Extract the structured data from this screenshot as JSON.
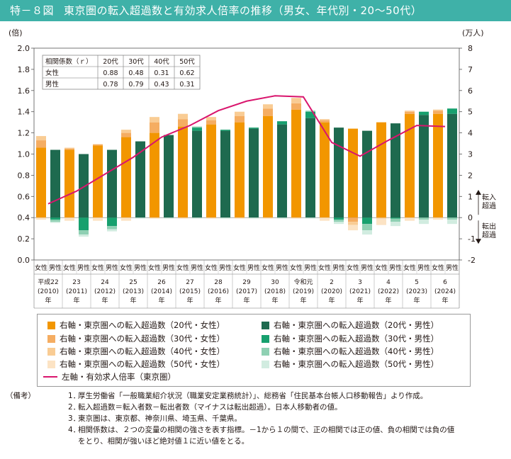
{
  "title": {
    "number": "特－８図",
    "text": "東京圏の転入超過数と有効求人倍率の推移（男女、年代別・20～50代）"
  },
  "chart_data": {
    "type": "bar",
    "left_axis": {
      "label": "(倍)",
      "min": 0.0,
      "max": 2.0,
      "ticks": [
        "0.0",
        "0.2",
        "0.4",
        "0.6",
        "0.8",
        "1.0",
        "1.2",
        "1.4",
        "1.6",
        "1.8",
        "2.0"
      ]
    },
    "right_axis": {
      "label": "(万人)",
      "min": -2,
      "max": 8,
      "ticks": [
        "-2",
        "-1",
        "0",
        "1",
        "2",
        "3",
        "4",
        "5",
        "6",
        "7",
        "8"
      ],
      "annotations": {
        "positive": [
          "転入",
          "超過"
        ],
        "negative": [
          "転出",
          "超過"
        ]
      }
    },
    "years": [
      {
        "era": "平成22",
        "western": "(2010)",
        "suffix": "年"
      },
      {
        "era": "23",
        "western": "(2011)",
        "suffix": "年"
      },
      {
        "era": "24",
        "western": "(2012)",
        "suffix": "年"
      },
      {
        "era": "25",
        "western": "(2013)",
        "suffix": "年"
      },
      {
        "era": "26",
        "western": "(2014)",
        "suffix": "年"
      },
      {
        "era": "27",
        "western": "(2015)",
        "suffix": "年"
      },
      {
        "era": "28",
        "western": "(2016)",
        "suffix": "年"
      },
      {
        "era": "29",
        "western": "(2017)",
        "suffix": "年"
      },
      {
        "era": "30",
        "western": "(2018)",
        "suffix": "年"
      },
      {
        "era": "令和元",
        "western": "(2019)",
        "suffix": "年"
      },
      {
        "era": "2",
        "western": "(2020)",
        "suffix": "年"
      },
      {
        "era": "3",
        "western": "(2021)",
        "suffix": "年"
      },
      {
        "era": "4",
        "western": "(2022)",
        "suffix": "年"
      },
      {
        "era": "5",
        "western": "(2023)",
        "suffix": "年"
      },
      {
        "era": "6",
        "western": "(2024)",
        "suffix": "年"
      }
    ],
    "sex_labels": {
      "female": "女性",
      "male": "男性"
    },
    "colors": {
      "female": [
        "#f29600",
        "#f5ad62",
        "#f9cc94",
        "#fce3c4"
      ],
      "male": [
        "#1e6a4f",
        "#17a06e",
        "#8fd0b3",
        "#d1ece0"
      ],
      "line": "#d9156d"
    },
    "female_series": [
      {
        "name": "右軸・東京圏への転入超過数（20代・女性）",
        "values": [
          3.3,
          3.2,
          3.4,
          3.8,
          4.0,
          4.3,
          4.4,
          4.5,
          4.8,
          5.1,
          4.5,
          4.2,
          4.5,
          4.9,
          4.9
        ]
      },
      {
        "name": "右軸・東京圏への転入超過数（30代・女性）",
        "values": [
          0.35,
          0.05,
          0.05,
          0.2,
          0.5,
          0.35,
          0.2,
          0.3,
          0.35,
          0.3,
          0.1,
          -0.2,
          0.0,
          0.1,
          0.15
        ]
      },
      {
        "name": "右軸・東京圏への転入超過数（40代・女性）",
        "values": [
          0.2,
          0.05,
          0.02,
          0.15,
          0.25,
          0.25,
          0.15,
          0.2,
          0.2,
          0.25,
          0.05,
          -0.15,
          -0.05,
          0.05,
          0.05
        ]
      },
      {
        "name": "右軸・東京圏への転入超過数（50代・女性）",
        "values": [
          -0.1,
          -0.15,
          -0.15,
          -0.15,
          -0.05,
          -0.05,
          -0.05,
          -0.05,
          -0.05,
          -0.05,
          -0.15,
          -0.25,
          -0.3,
          -0.15,
          -0.1
        ]
      }
    ],
    "male_series": [
      {
        "name": "右軸・東京圏への転入超過数（20代・男性）",
        "values": [
          3.2,
          3.0,
          3.2,
          3.6,
          3.9,
          4.1,
          4.1,
          4.2,
          4.4,
          4.7,
          4.25,
          4.1,
          4.45,
          4.85,
          4.9
        ]
      },
      {
        "name": "右軸・東京圏への転入超過数（30代・男性）",
        "values": [
          -0.1,
          -0.6,
          -0.4,
          0.0,
          0.0,
          0.15,
          0.05,
          0.05,
          0.15,
          0.3,
          -0.1,
          -0.3,
          -0.05,
          0.15,
          0.25
        ]
      },
      {
        "name": "右軸・東京圏への転入超過数（40代・男性）",
        "values": [
          -0.1,
          -0.2,
          -0.15,
          0.0,
          0.0,
          0.05,
          0.0,
          0.0,
          0.0,
          0.05,
          -0.1,
          -0.3,
          -0.15,
          -0.1,
          -0.1
        ]
      },
      {
        "name": "右軸・東京圏への転入超過数（50代・男性）",
        "values": [
          -0.05,
          -0.1,
          -0.1,
          -0.05,
          -0.05,
          -0.05,
          -0.05,
          -0.05,
          -0.05,
          -0.05,
          -0.1,
          -0.2,
          -0.2,
          -0.2,
          -0.2
        ]
      }
    ],
    "line_series": {
      "name": "左軸・有効求人倍率（東京圏）",
      "values": [
        0.53,
        0.65,
        0.81,
        0.97,
        1.16,
        1.27,
        1.41,
        1.5,
        1.55,
        1.54,
        1.11,
        0.98,
        1.13,
        1.27,
        1.26
      ]
    },
    "correlation_table": {
      "header": [
        "相関係数（ｒ）",
        "20代",
        "30代",
        "40代",
        "50代"
      ],
      "rows": [
        [
          "女性",
          "0.88",
          "0.48",
          "0.31",
          "0.62"
        ],
        [
          "男性",
          "0.78",
          "0.79",
          "0.43",
          "0.31"
        ]
      ]
    }
  },
  "legend": {
    "left": [
      "右軸・東京圏への転入超過数（20代・女性）",
      "右軸・東京圏への転入超過数（30代・女性）",
      "右軸・東京圏への転入超過数（40代・女性）",
      "右軸・東京圏への転入超過数（50代・女性）",
      "左軸・有効求人倍率（東京圏）"
    ],
    "right": [
      "右軸・東京圏への転入超過数（20代・男性）",
      "右軸・東京圏への転入超過数（30代・男性）",
      "右軸・東京圏への転入超過数（40代・男性）",
      "右軸・東京圏への転入超過数（50代・男性）"
    ]
  },
  "notes": {
    "label": "（備考）",
    "items": [
      {
        "num": "1．",
        "text": "厚生労働省「一般職業紹介状況（職業安定業務統計）」、総務省「住民基本台帳人口移動報告」より作成。"
      },
      {
        "num": "2．",
        "text": "転入超過数＝転入者数－転出者数（マイナスは転出超過）。日本人移動者の値。"
      },
      {
        "num": "3．",
        "text": "東京圏は、東京都、神奈川県、埼玉県、千葉県。"
      },
      {
        "num": "4．",
        "text": "相関係数は、２つの変量の相関の強さを表す指標。－1から１の間で、正の相関では正の値、負の相関では負の値",
        "text2": "をとり、相関が強いほど絶対値１に近い値をとる。"
      }
    ]
  }
}
